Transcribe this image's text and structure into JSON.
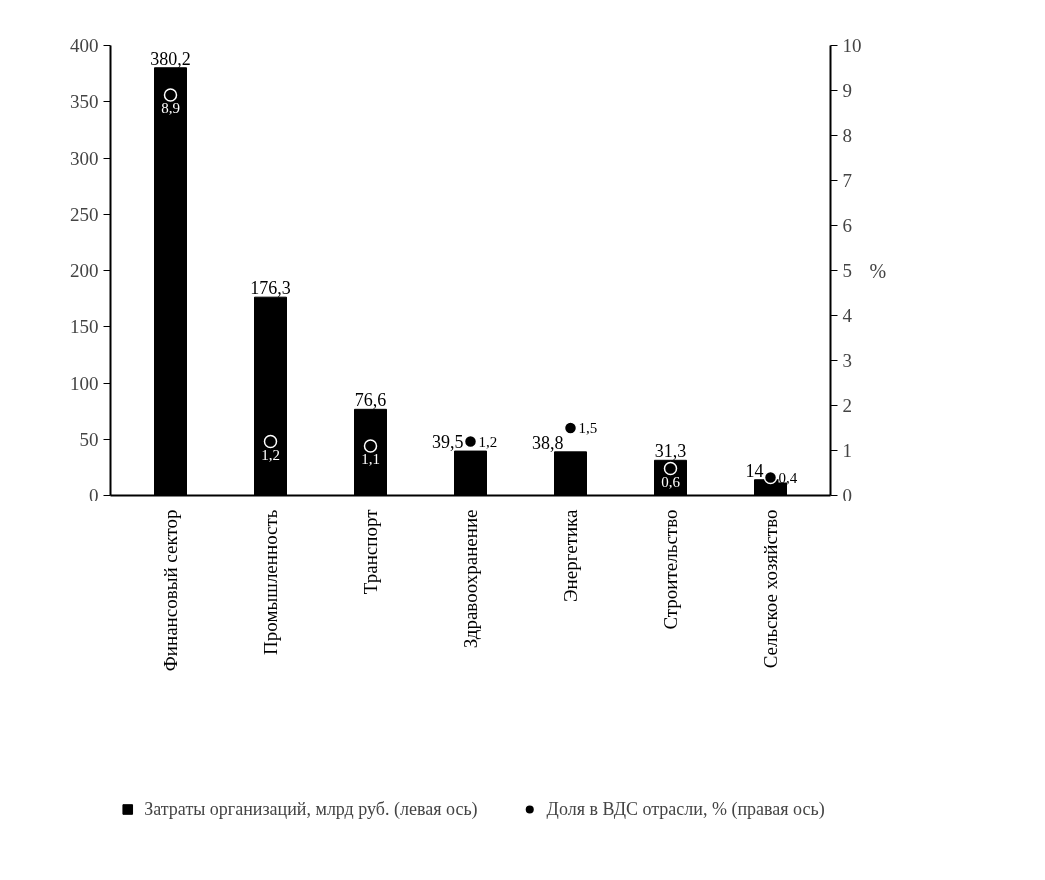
{
  "chart_data": {
    "type": "bar",
    "categories": [
      "Финансовый сектор",
      "Промышленность",
      "Транспорт",
      "Здравоохранение",
      "Энергетика",
      "Строительство",
      "Сельское хозяйство"
    ],
    "series": [
      {
        "name": "Затраты организаций, млрд руб. (левая ось)",
        "color": "#000000",
        "values": [
          380.2,
          176.3,
          76.6,
          39.5,
          38.8,
          31.3,
          14
        ],
        "value_labels": [
          "380,2",
          "176,3",
          "76,6",
          "39,5",
          "38,8",
          "31,3",
          "14"
        ]
      },
      {
        "name": "Доля в ВДС отрасли, % (правая ось)",
        "type": "scatter",
        "axis": "y2",
        "marker": "circle",
        "color": "#000000",
        "values": [
          8.9,
          1.2,
          1.1,
          1.2,
          1.5,
          0.6,
          0.4
        ],
        "value_labels": [
          "8,9",
          "1,2",
          "1,1",
          "1,2",
          "1,5",
          "0,6",
          "0,4"
        ]
      }
    ],
    "y2label": "%",
    "ylim": [
      0,
      400
    ],
    "yticks": [
      0,
      50,
      100,
      150,
      200,
      250,
      300,
      350,
      400
    ],
    "y2lim": [
      0,
      10
    ],
    "y2ticks": [
      0,
      1,
      2,
      3,
      4,
      5,
      6,
      7,
      8,
      9,
      10
    ],
    "grid": false,
    "legend": "bottom"
  }
}
